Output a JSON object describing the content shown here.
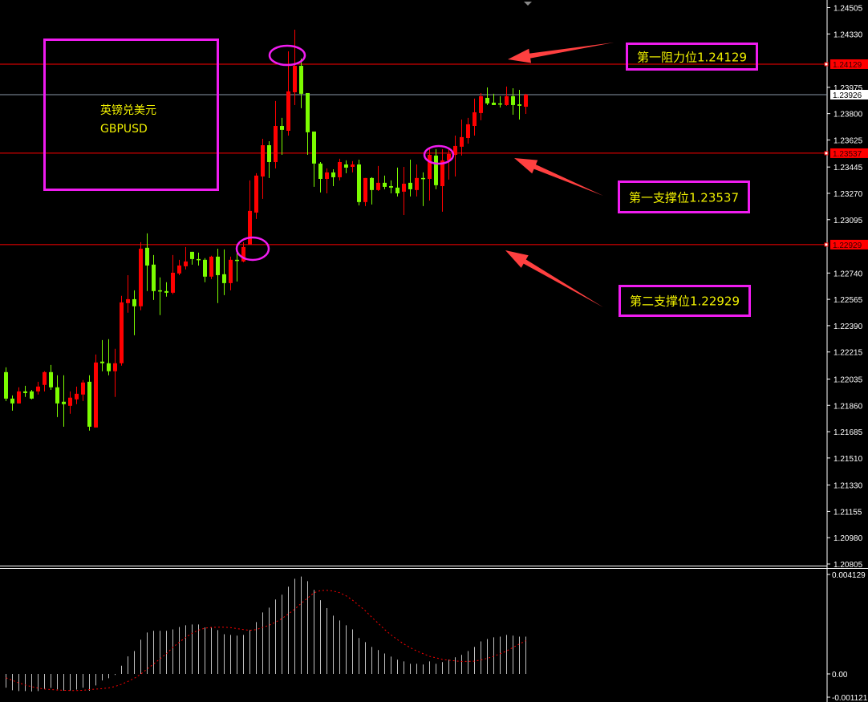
{
  "chart_data": {
    "type": "candlestick",
    "symbol_label": "GBPUSD",
    "title_cn": "英镑兑美元",
    "colors": {
      "background": "#000000",
      "bull": "#ff0000",
      "bear": "#7cfc00",
      "signal": "#ff0000",
      "histogram": "#c0c0c0",
      "annotation": "#f01cf0",
      "annotation_text": "#f0f000",
      "arrow": "#ff4040",
      "bid_line": "#8a98a8",
      "level_line": "#ff0000"
    },
    "price_axis": {
      "range": [
        1.20805,
        1.24505
      ],
      "ticks": [
        "1.24505",
        "1.24330",
        "1.23975",
        "1.23800",
        "1.23625",
        "1.23445",
        "1.23270",
        "1.23095",
        "1.22740",
        "1.22565",
        "1.22390",
        "1.22215",
        "1.22035",
        "1.21860",
        "1.21685",
        "1.21510",
        "1.21330",
        "1.21155",
        "1.20980",
        "1.20805"
      ]
    },
    "price_labels": [
      {
        "value": "1.24129",
        "style": "level"
      },
      {
        "value": "1.23926",
        "style": "bid"
      },
      {
        "value": "1.23537",
        "style": "level"
      },
      {
        "value": "1.22929",
        "style": "level"
      }
    ],
    "levels": [
      1.24129,
      1.23537,
      1.22929
    ],
    "bid": 1.23926,
    "ohlc": [
      [
        1.22081,
        1.22113,
        1.21889,
        1.21905
      ],
      [
        1.21905,
        1.21926,
        1.21825,
        1.21873
      ],
      [
        1.21873,
        1.2198,
        1.21873,
        1.21953
      ],
      [
        1.21953,
        1.2199,
        1.21916,
        1.21942
      ],
      [
        1.21953,
        1.21963,
        1.219,
        1.21905
      ],
      [
        1.21953,
        1.22017,
        1.21932,
        1.21985
      ],
      [
        1.21996,
        1.22087,
        1.21953,
        1.22081
      ],
      [
        1.22081,
        1.22129,
        1.21963,
        1.2198
      ],
      [
        1.2198,
        1.2206,
        1.21782,
        1.21873
      ],
      [
        1.21884,
        1.2206,
        1.21718,
        1.21868
      ],
      [
        1.21857,
        1.21953,
        1.21804,
        1.21911
      ],
      [
        1.219,
        1.21985,
        1.21868,
        1.21937
      ],
      [
        1.21932,
        1.22028,
        1.21889,
        1.22012
      ],
      [
        1.22017,
        1.2206,
        1.21692,
        1.21718
      ],
      [
        1.21713,
        1.22198,
        1.21713,
        1.22145
      ],
      [
        1.22151,
        1.22294,
        1.22087,
        1.2214
      ],
      [
        1.2214,
        1.223,
        1.2206,
        1.22087
      ],
      [
        1.22087,
        1.22236,
        1.21916,
        1.2214
      ],
      [
        1.2214,
        1.22588,
        1.22124,
        1.22545
      ],
      [
        1.2254,
        1.22726,
        1.22476,
        1.22566
      ],
      [
        1.22566,
        1.22625,
        1.22326,
        1.22519
      ],
      [
        1.22519,
        1.22945,
        1.22492,
        1.22902
      ],
      [
        1.22908,
        1.23004,
        1.2262,
        1.2279
      ],
      [
        1.22796,
        1.2286,
        1.22561,
        1.2262
      ],
      [
        1.22625,
        1.22711,
        1.2246,
        1.2262
      ],
      [
        1.2262,
        1.22679,
        1.22583,
        1.22609
      ],
      [
        1.22609,
        1.2286,
        1.22599,
        1.22742
      ],
      [
        1.22737,
        1.22828,
        1.22726,
        1.2279
      ],
      [
        1.22785,
        1.22913,
        1.22764,
        1.22817
      ],
      [
        1.22881,
        1.22881,
        1.22796,
        1.22833
      ],
      [
        1.22833,
        1.22876,
        1.2279,
        1.22828
      ],
      [
        1.22828,
        1.22839,
        1.22679,
        1.22716
      ],
      [
        1.22716,
        1.22855,
        1.227,
        1.22849
      ],
      [
        1.22849,
        1.22902,
        1.2254,
        1.22726
      ],
      [
        1.22732,
        1.22897,
        1.22593,
        1.22673
      ],
      [
        1.22673,
        1.22849,
        1.22625,
        1.22828
      ],
      [
        1.22828,
        1.22892,
        1.22684,
        1.22823
      ],
      [
        1.22817,
        1.22945,
        1.22812,
        1.22913
      ],
      [
        1.22929,
        1.23356,
        1.22929,
        1.23153
      ],
      [
        1.23142,
        1.23404,
        1.231,
        1.23388
      ],
      [
        1.23382,
        1.23633,
        1.23233,
        1.2359
      ],
      [
        1.2359,
        1.23617,
        1.23372,
        1.23478
      ],
      [
        1.23478,
        1.23884,
        1.23436,
        1.23718
      ],
      [
        1.23718,
        1.23772,
        1.23526,
        1.23692
      ],
      [
        1.23686,
        1.24214,
        1.23654,
        1.23948
      ],
      [
        1.23942,
        1.24358,
        1.23857,
        1.24118
      ],
      [
        1.24118,
        1.24166,
        1.23836,
        1.23932
      ],
      [
        1.23937,
        1.23937,
        1.23526,
        1.23676
      ],
      [
        1.23681,
        1.23681,
        1.23313,
        1.23468
      ],
      [
        1.23468,
        1.23478,
        1.23276,
        1.23366
      ],
      [
        1.23366,
        1.23436,
        1.2327,
        1.23409
      ],
      [
        1.23409,
        1.2343,
        1.23318,
        1.23377
      ],
      [
        1.23377,
        1.235,
        1.23356,
        1.23478
      ],
      [
        1.23462,
        1.23489,
        1.23404,
        1.23441
      ],
      [
        1.23446,
        1.23484,
        1.23409,
        1.23462
      ],
      [
        1.23462,
        1.23494,
        1.2319,
        1.23212
      ],
      [
        1.23212,
        1.23372,
        1.23185,
        1.23372
      ],
      [
        1.23372,
        1.23377,
        1.23196,
        1.23292
      ],
      [
        1.23292,
        1.23452,
        1.23286,
        1.2334
      ],
      [
        1.2334,
        1.23388,
        1.23297,
        1.23313
      ],
      [
        1.23318,
        1.23356,
        1.2327,
        1.23308
      ],
      [
        1.23308,
        1.23441,
        1.23249,
        1.2327
      ],
      [
        1.23281,
        1.23446,
        1.23126,
        1.23334
      ],
      [
        1.2334,
        1.23494,
        1.23249,
        1.23297
      ],
      [
        1.23292,
        1.23462,
        1.23249,
        1.23372
      ],
      [
        1.23372,
        1.23409,
        1.23185,
        1.23366
      ],
      [
        1.23366,
        1.23569,
        1.23222,
        1.23526
      ],
      [
        1.23521,
        1.23564,
        1.23297,
        1.23324
      ],
      [
        1.23318,
        1.23564,
        1.23148,
        1.23489
      ],
      [
        1.23489,
        1.23569,
        1.23361,
        1.23532
      ],
      [
        1.23526,
        1.23654,
        1.23382,
        1.23585
      ],
      [
        1.2358,
        1.23761,
        1.23521,
        1.23644
      ],
      [
        1.23638,
        1.23772,
        1.23601,
        1.23729
      ],
      [
        1.23718,
        1.239,
        1.23654,
        1.23809
      ],
      [
        1.23804,
        1.23937,
        1.23756,
        1.23916
      ],
      [
        1.23905,
        1.23974,
        1.23857,
        1.23868
      ],
      [
        1.23873,
        1.23932,
        1.23857,
        1.23857
      ],
      [
        1.23868,
        1.23916,
        1.23841,
        1.23862
      ],
      [
        1.23857,
        1.2398,
        1.23852,
        1.23916
      ],
      [
        1.23916,
        1.23969,
        1.23793,
        1.23857
      ],
      [
        1.23862,
        1.23958,
        1.23761,
        1.23852
      ],
      [
        1.23846,
        1.23932,
        1.23798,
        1.23926
      ]
    ],
    "macd": {
      "axis_ticks": [
        "0.004129",
        "0.00",
        "-0.001121"
      ],
      "range": [
        -0.001121,
        0.004129
      ],
      "histogram": [
        -0.00057,
        -0.00068,
        -0.00071,
        -0.00071,
        -0.00073,
        -0.00071,
        -0.00062,
        -0.00058,
        -0.00064,
        -0.00069,
        -0.00069,
        -0.00065,
        -0.00057,
        -0.0007,
        -0.00048,
        -0.00027,
        -0.00018,
        -4e-05,
        0.00034,
        0.00073,
        0.00095,
        0.00142,
        0.00172,
        0.00179,
        0.00179,
        0.00179,
        0.00185,
        0.00195,
        0.00202,
        0.00205,
        0.00205,
        0.00193,
        0.00192,
        0.00182,
        0.00165,
        0.00162,
        0.00159,
        0.00162,
        0.00182,
        0.00215,
        0.00255,
        0.00275,
        0.00309,
        0.00329,
        0.00362,
        0.00395,
        0.00404,
        0.00385,
        0.00349,
        0.00306,
        0.00273,
        0.00242,
        0.00222,
        0.00202,
        0.00185,
        0.00149,
        0.00132,
        0.00112,
        0.00099,
        0.00085,
        0.00072,
        0.00059,
        0.00052,
        0.00042,
        0.00042,
        0.00039,
        0.00052,
        0.00042,
        0.00049,
        0.00059,
        0.00069,
        0.00079,
        0.00095,
        0.00112,
        0.00135,
        0.00145,
        0.00152,
        0.00155,
        0.00162,
        0.00159,
        0.00155,
        0.00155
      ],
      "signal": [
        -0.00016,
        -0.00027,
        -0.00037,
        -0.00046,
        -0.00053,
        -0.00059,
        -0.00063,
        -0.00065,
        -0.00067,
        -0.00068,
        -0.00069,
        -0.00069,
        -0.00068,
        -0.00065,
        -0.00063,
        -0.00061,
        -0.00058,
        -0.00052,
        -0.00043,
        -0.00031,
        -0.00018,
        -1e-05,
        0.00021,
        0.00041,
        0.00063,
        0.00084,
        0.0011,
        0.00132,
        0.00151,
        0.00169,
        0.00182,
        0.0019,
        0.00193,
        0.00194,
        0.00194,
        0.00192,
        0.00188,
        0.00184,
        0.00181,
        0.00184,
        0.00193,
        0.00202,
        0.00215,
        0.0023,
        0.00249,
        0.00269,
        0.00293,
        0.00315,
        0.00337,
        0.00346,
        0.00347,
        0.00344,
        0.00337,
        0.00324,
        0.00306,
        0.00284,
        0.00262,
        0.00235,
        0.0021,
        0.00184,
        0.00162,
        0.00142,
        0.00124,
        0.00109,
        0.00095,
        0.00084,
        0.00073,
        0.00067,
        0.0006,
        0.00057,
        0.00054,
        0.00052,
        0.00052,
        0.00053,
        0.00058,
        0.00065,
        0.00073,
        0.00084,
        0.00095,
        0.0011,
        0.00124,
        0.00138
      ]
    },
    "annotations": {
      "title_box": {
        "line1": "英镑兑美元",
        "line2": "GBPUSD"
      },
      "resistance_1": "第一阻力位1.24129",
      "support_1": "第一支撑位1.23537",
      "support_2": "第二支撑位1.22929"
    }
  }
}
